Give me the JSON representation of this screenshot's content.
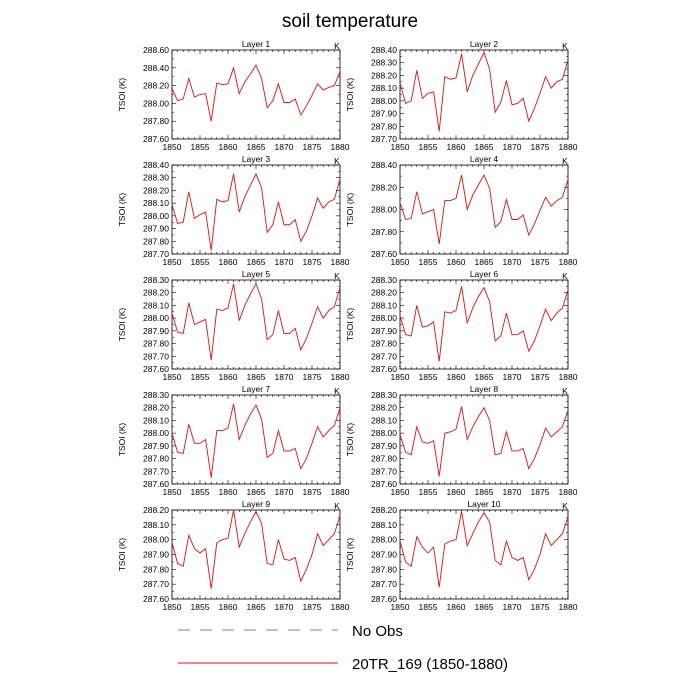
{
  "figure": {
    "title": "soil temperature",
    "legend": [
      {
        "label": "No Obs",
        "color": "#7a7ad0",
        "dash": true
      },
      {
        "label": "20TR_169 (1850-1880)",
        "color": "#e01010",
        "dash": false
      }
    ]
  },
  "chart_data": [
    {
      "type": "line",
      "title": "Layer 1",
      "unit_label": "K",
      "ylabel": "TSOI  (K)",
      "xlim": [
        1850,
        1880
      ],
      "ylim": [
        287.6,
        288.6
      ],
      "xticks": [
        1850,
        1855,
        1860,
        1865,
        1870,
        1875,
        1880
      ],
      "yticks": [
        "287.60",
        "287.80",
        "288.00",
        "288.20",
        "288.40",
        "288.60"
      ],
      "series": [
        {
          "x": [
            1850,
            1851,
            1852,
            1853,
            1854,
            1855,
            1856,
            1857,
            1858,
            1859,
            1860,
            1861,
            1862,
            1863,
            1864,
            1865,
            1866,
            1867,
            1868,
            1869,
            1870,
            1871,
            1872,
            1873,
            1874,
            1875,
            1876,
            1877,
            1878,
            1879,
            1880
          ],
          "values": [
            288.17,
            288.03,
            288.05,
            288.28,
            288.07,
            288.1,
            288.11,
            287.8,
            288.23,
            288.21,
            288.22,
            288.4,
            288.11,
            288.24,
            288.33,
            288.43,
            288.28,
            287.95,
            288.03,
            288.22,
            288.01,
            288.01,
            288.05,
            287.87,
            287.97,
            288.09,
            288.22,
            288.15,
            288.18,
            288.2,
            288.36
          ],
          "color": "#e01010"
        }
      ]
    },
    {
      "type": "line",
      "title": "Layer 2",
      "unit_label": "K",
      "ylabel": "TSOI  (K)",
      "xlim": [
        1850,
        1880
      ],
      "ylim": [
        287.7,
        288.4
      ],
      "xticks": [
        1850,
        1855,
        1860,
        1865,
        1870,
        1875,
        1880
      ],
      "yticks": [
        "287.70",
        "287.80",
        "287.90",
        "288.00",
        "288.10",
        "288.20",
        "288.30",
        "288.40"
      ],
      "series": [
        {
          "x": [
            1850,
            1851,
            1852,
            1853,
            1854,
            1855,
            1856,
            1857,
            1858,
            1859,
            1860,
            1861,
            1862,
            1863,
            1864,
            1865,
            1866,
            1867,
            1868,
            1869,
            1870,
            1871,
            1872,
            1873,
            1874,
            1875,
            1876,
            1877,
            1878,
            1879,
            1880
          ],
          "values": [
            288.14,
            287.98,
            288.0,
            288.24,
            288.02,
            288.06,
            288.07,
            287.76,
            288.19,
            288.17,
            288.18,
            288.37,
            288.07,
            288.2,
            288.29,
            288.38,
            288.25,
            287.91,
            287.99,
            288.16,
            287.97,
            287.98,
            288.02,
            287.84,
            287.94,
            288.06,
            288.19,
            288.1,
            288.15,
            288.17,
            288.32
          ],
          "color": "#e01010"
        }
      ]
    },
    {
      "type": "line",
      "title": "Layer 3",
      "unit_label": "K",
      "ylabel": "TSOI  (K)",
      "xlim": [
        1850,
        1880
      ],
      "ylim": [
        287.7,
        288.4
      ],
      "xticks": [
        1850,
        1855,
        1860,
        1865,
        1870,
        1875,
        1880
      ],
      "yticks": [
        "287.70",
        "287.80",
        "287.90",
        "288.00",
        "288.10",
        "288.20",
        "288.30",
        "288.40"
      ],
      "series": [
        {
          "x": [
            1850,
            1851,
            1852,
            1853,
            1854,
            1855,
            1856,
            1857,
            1858,
            1859,
            1860,
            1861,
            1862,
            1863,
            1864,
            1865,
            1866,
            1867,
            1868,
            1869,
            1870,
            1871,
            1872,
            1873,
            1874,
            1875,
            1876,
            1877,
            1878,
            1879,
            1880
          ],
          "values": [
            288.09,
            287.94,
            287.95,
            288.19,
            287.98,
            288.01,
            288.03,
            287.73,
            288.13,
            288.11,
            288.12,
            288.33,
            288.03,
            288.15,
            288.24,
            288.33,
            288.22,
            287.87,
            287.93,
            288.11,
            287.93,
            287.93,
            287.97,
            287.8,
            287.88,
            288.0,
            288.14,
            288.06,
            288.11,
            288.13,
            288.29
          ],
          "color": "#e01010"
        }
      ]
    },
    {
      "type": "line",
      "title": "Layer 4",
      "unit_label": "K",
      "ylabel": "TSOI  (K)",
      "xlim": [
        1850,
        1880
      ],
      "ylim": [
        287.6,
        288.4
      ],
      "xticks": [
        1850,
        1855,
        1860,
        1865,
        1870,
        1875,
        1880
      ],
      "yticks": [
        "287.60",
        "287.80",
        "288.00",
        "288.20",
        "288.40"
      ],
      "series": [
        {
          "x": [
            1850,
            1851,
            1852,
            1853,
            1854,
            1855,
            1856,
            1857,
            1858,
            1859,
            1860,
            1861,
            1862,
            1863,
            1864,
            1865,
            1866,
            1867,
            1868,
            1869,
            1870,
            1871,
            1872,
            1873,
            1874,
            1875,
            1876,
            1877,
            1878,
            1879,
            1880
          ],
          "values": [
            288.06,
            287.91,
            287.92,
            288.16,
            287.96,
            287.98,
            288.0,
            287.69,
            288.08,
            288.08,
            288.1,
            288.31,
            288.0,
            288.13,
            288.22,
            288.31,
            288.19,
            287.84,
            287.89,
            288.09,
            287.91,
            287.91,
            287.95,
            287.77,
            287.87,
            287.99,
            288.11,
            288.03,
            288.08,
            288.11,
            288.27
          ],
          "color": "#e01010"
        }
      ]
    },
    {
      "type": "line",
      "title": "Layer 5",
      "unit_label": "K",
      "ylabel": "TSOI  (K)",
      "xlim": [
        1850,
        1880
      ],
      "ylim": [
        287.6,
        288.3
      ],
      "xticks": [
        1850,
        1855,
        1860,
        1865,
        1870,
        1875,
        1880
      ],
      "yticks": [
        "287.60",
        "287.70",
        "287.80",
        "287.90",
        "288.00",
        "288.10",
        "288.20",
        "288.30"
      ],
      "series": [
        {
          "x": [
            1850,
            1851,
            1852,
            1853,
            1854,
            1855,
            1856,
            1857,
            1858,
            1859,
            1860,
            1861,
            1862,
            1863,
            1864,
            1865,
            1866,
            1867,
            1868,
            1869,
            1870,
            1871,
            1872,
            1873,
            1874,
            1875,
            1876,
            1877,
            1878,
            1879,
            1880
          ],
          "values": [
            288.04,
            287.89,
            287.88,
            288.12,
            287.95,
            287.97,
            287.99,
            287.67,
            288.07,
            288.06,
            288.08,
            288.27,
            287.98,
            288.1,
            288.19,
            288.27,
            288.15,
            287.83,
            287.87,
            288.06,
            287.88,
            287.88,
            287.92,
            287.75,
            287.84,
            287.96,
            288.09,
            288.0,
            288.06,
            288.09,
            288.24
          ],
          "color": "#e01010"
        }
      ]
    },
    {
      "type": "line",
      "title": "Layer 6",
      "unit_label": "K",
      "ylabel": "TSOI  (K)",
      "xlim": [
        1850,
        1880
      ],
      "ylim": [
        287.6,
        288.3
      ],
      "xticks": [
        1850,
        1855,
        1860,
        1865,
        1870,
        1875,
        1880
      ],
      "yticks": [
        "287.60",
        "287.70",
        "287.80",
        "287.90",
        "288.00",
        "288.10",
        "288.20",
        "288.30"
      ],
      "series": [
        {
          "x": [
            1850,
            1851,
            1852,
            1853,
            1854,
            1855,
            1856,
            1857,
            1858,
            1859,
            1860,
            1861,
            1862,
            1863,
            1864,
            1865,
            1866,
            1867,
            1868,
            1869,
            1870,
            1871,
            1872,
            1873,
            1874,
            1875,
            1876,
            1877,
            1878,
            1879,
            1880
          ],
          "values": [
            288.02,
            287.87,
            287.86,
            288.1,
            287.93,
            287.94,
            287.97,
            287.66,
            288.05,
            288.04,
            288.06,
            288.25,
            287.96,
            288.08,
            288.17,
            288.24,
            288.13,
            287.82,
            287.86,
            288.04,
            287.87,
            287.87,
            287.9,
            287.74,
            287.82,
            287.94,
            288.07,
            287.98,
            288.04,
            288.08,
            288.22
          ],
          "color": "#e01010"
        }
      ]
    },
    {
      "type": "line",
      "title": "Layer 7",
      "unit_label": "K",
      "ylabel": "TSOI  (K)",
      "xlim": [
        1850,
        1880
      ],
      "ylim": [
        287.6,
        288.3
      ],
      "xticks": [
        1850,
        1855,
        1860,
        1865,
        1870,
        1875,
        1880
      ],
      "yticks": [
        "287.60",
        "287.70",
        "287.80",
        "287.90",
        "288.00",
        "288.10",
        "288.20",
        "288.30"
      ],
      "series": [
        {
          "x": [
            1850,
            1851,
            1852,
            1853,
            1854,
            1855,
            1856,
            1857,
            1858,
            1859,
            1860,
            1861,
            1862,
            1863,
            1864,
            1865,
            1866,
            1867,
            1868,
            1869,
            1870,
            1871,
            1872,
            1873,
            1874,
            1875,
            1876,
            1877,
            1878,
            1879,
            1880
          ],
          "values": [
            288.0,
            287.85,
            287.84,
            288.07,
            287.92,
            287.92,
            287.95,
            287.65,
            288.02,
            288.02,
            288.04,
            288.23,
            287.95,
            288.06,
            288.15,
            288.22,
            288.11,
            287.81,
            287.84,
            288.02,
            287.86,
            287.86,
            287.88,
            287.72,
            287.8,
            287.92,
            288.05,
            287.97,
            288.02,
            288.06,
            288.2
          ],
          "color": "#e01010"
        }
      ]
    },
    {
      "type": "line",
      "title": "Layer 8",
      "unit_label": "K",
      "ylabel": "TSOI  (K)",
      "xlim": [
        1850,
        1880
      ],
      "ylim": [
        287.6,
        288.3
      ],
      "xticks": [
        1850,
        1855,
        1860,
        1865,
        1870,
        1875,
        1880
      ],
      "yticks": [
        "287.60",
        "287.70",
        "287.80",
        "287.90",
        "288.00",
        "288.10",
        "288.20",
        "288.30"
      ],
      "series": [
        {
          "x": [
            1850,
            1851,
            1852,
            1853,
            1854,
            1855,
            1856,
            1857,
            1858,
            1859,
            1860,
            1861,
            1862,
            1863,
            1864,
            1865,
            1866,
            1867,
            1868,
            1869,
            1870,
            1871,
            1872,
            1873,
            1874,
            1875,
            1876,
            1877,
            1878,
            1879,
            1880
          ],
          "values": [
            287.99,
            287.85,
            287.83,
            288.05,
            287.93,
            287.92,
            287.94,
            287.66,
            288.0,
            288.01,
            288.03,
            288.21,
            287.95,
            288.05,
            288.13,
            288.2,
            288.1,
            287.83,
            287.84,
            288.01,
            287.86,
            287.86,
            287.88,
            287.72,
            287.8,
            287.91,
            288.04,
            287.97,
            288.01,
            288.05,
            288.18
          ],
          "color": "#e01010"
        }
      ]
    },
    {
      "type": "line",
      "title": "Layer 9",
      "unit_label": "K",
      "ylabel": "TSOI  (K)",
      "xlim": [
        1850,
        1880
      ],
      "ylim": [
        287.6,
        288.2
      ],
      "xticks": [
        1850,
        1855,
        1860,
        1865,
        1870,
        1875,
        1880
      ],
      "yticks": [
        "287.60",
        "287.70",
        "287.80",
        "287.90",
        "288.00",
        "288.10",
        "288.20"
      ],
      "series": [
        {
          "x": [
            1850,
            1851,
            1852,
            1853,
            1854,
            1855,
            1856,
            1857,
            1858,
            1859,
            1860,
            1861,
            1862,
            1863,
            1864,
            1865,
            1866,
            1867,
            1868,
            1869,
            1870,
            1871,
            1872,
            1873,
            1874,
            1875,
            1876,
            1877,
            1878,
            1879,
            1880
          ],
          "values": [
            287.98,
            287.84,
            287.82,
            288.03,
            287.94,
            287.91,
            287.94,
            287.67,
            287.98,
            288.0,
            288.01,
            288.2,
            287.95,
            288.04,
            288.12,
            288.19,
            288.11,
            287.84,
            287.83,
            288.0,
            287.87,
            287.86,
            287.88,
            287.72,
            287.8,
            287.9,
            288.04,
            287.96,
            288.0,
            288.04,
            288.16
          ],
          "color": "#e01010"
        }
      ]
    },
    {
      "type": "line",
      "title": "Layer 10",
      "unit_label": "K",
      "ylabel": "TSOI  (K)",
      "xlim": [
        1850,
        1880
      ],
      "ylim": [
        287.6,
        288.2
      ],
      "xticks": [
        1850,
        1855,
        1860,
        1865,
        1870,
        1875,
        1880
      ],
      "yticks": [
        "287.60",
        "287.70",
        "287.80",
        "287.90",
        "288.00",
        "288.10",
        "288.20"
      ],
      "series": [
        {
          "x": [
            1850,
            1851,
            1852,
            1853,
            1854,
            1855,
            1856,
            1857,
            1858,
            1859,
            1860,
            1861,
            1862,
            1863,
            1864,
            1865,
            1866,
            1867,
            1868,
            1869,
            1870,
            1871,
            1872,
            1873,
            1874,
            1875,
            1876,
            1877,
            1878,
            1879,
            1880
          ],
          "values": [
            287.99,
            287.85,
            287.82,
            288.02,
            287.95,
            287.91,
            287.95,
            287.68,
            287.97,
            287.99,
            288.0,
            288.19,
            287.96,
            288.04,
            288.12,
            288.18,
            288.12,
            287.86,
            287.83,
            287.99,
            287.88,
            287.86,
            287.88,
            287.73,
            287.8,
            287.9,
            288.04,
            287.96,
            288.0,
            288.04,
            288.15
          ],
          "color": "#e01010"
        }
      ]
    }
  ]
}
